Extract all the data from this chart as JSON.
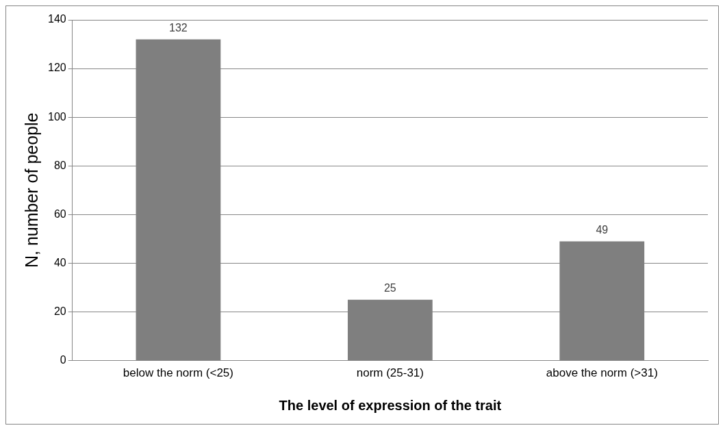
{
  "chart_data": {
    "type": "bar",
    "xlabel": "The level of expression of the trait",
    "ylabel": "N, number of people",
    "categories": [
      "below the norm (<25)",
      "norm (25-31)",
      "above the norm (>31)"
    ],
    "values": [
      132,
      25,
      49
    ],
    "color": "#7f7f7f",
    "ylim": [
      0,
      140
    ],
    "yticks": [
      0,
      20,
      40,
      60,
      80,
      100,
      120,
      140
    ],
    "grid": "y",
    "data_labels": true,
    "legend": false
  }
}
